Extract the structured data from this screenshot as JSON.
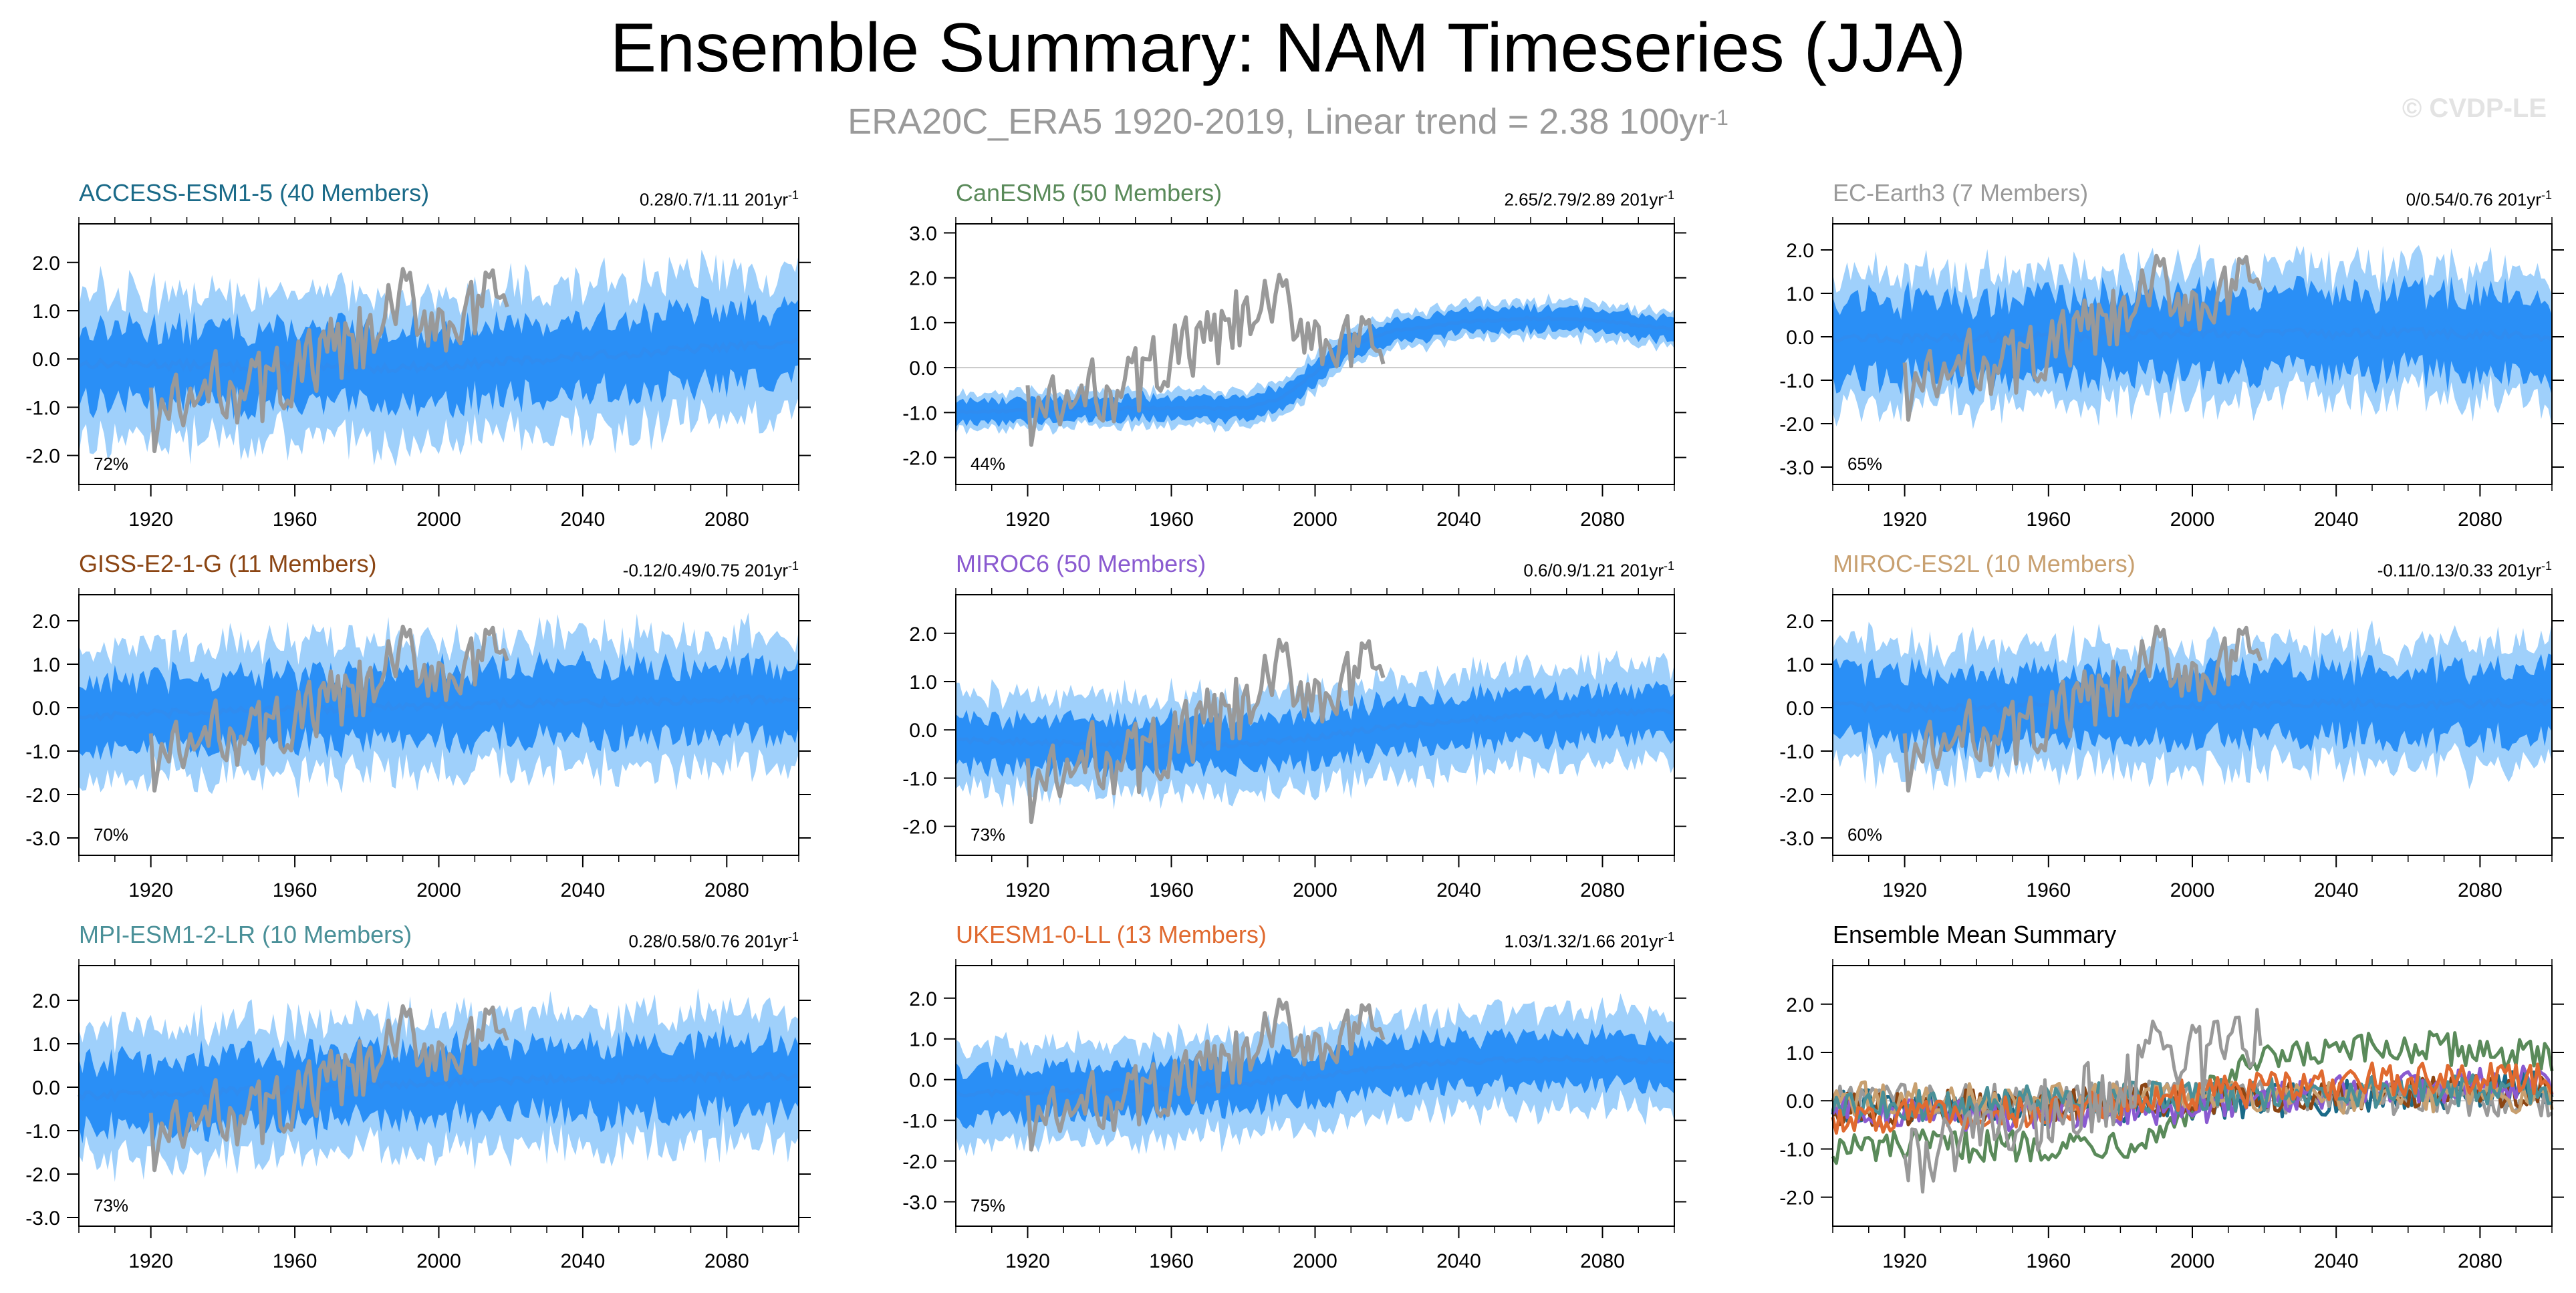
{
  "title": "Ensemble Summary: NAM Timeseries (JJA)",
  "subtitle": {
    "text": "ERA20C_ERA5 1920-2019, Linear trend = 2.38 100yr",
    "exponent": "-1"
  },
  "copyright": "© CVDP-LE",
  "colors": {
    "observations": "#999999",
    "ensemble_mean": "#2f8cf0",
    "band_inner": "#2a8ff6",
    "band_outer": "#9fd0fb",
    "zero_line": "#c8c8c8"
  },
  "chart_data": [
    {
      "type": "area",
      "model": "ACCESS-ESM1-5",
      "title": "ACCESS-ESM1-5 (40 Members)",
      "title_color": "#1a6a88",
      "trend_text": "0.28/0.7/1.11 201yr",
      "trend_exponent": "-1",
      "percent": "72%",
      "ylim": [
        -2.6,
        2.8
      ],
      "yticks": [
        -2,
        -1,
        0,
        1,
        2
      ],
      "ytick_labels": [
        "-2.0",
        "-1.0",
        "0.0",
        "1.0",
        "2.0"
      ],
      "xlim": [
        1900,
        2100
      ],
      "xticks": [
        1920,
        1960,
        2000,
        2040,
        2080
      ],
      "xtick_labels": [
        "1920",
        "1960",
        "2000",
        "2040",
        "2080"
      ],
      "series": [
        {
          "name": "ensemble mean",
          "x": [
            1900,
            1920,
            1940,
            1960,
            1980,
            2000,
            2020,
            2040,
            2060,
            2080,
            2100
          ],
          "values": [
            -0.1,
            -0.1,
            -0.15,
            -0.15,
            -0.2,
            -0.15,
            -0.05,
            0.05,
            0.15,
            0.25,
            0.35
          ]
        },
        {
          "name": "observations",
          "x": [
            1920,
            1930,
            1940,
            1950,
            1960,
            1970,
            1980,
            1990,
            2000,
            2010,
            2019
          ],
          "values": [
            -1.2,
            -1.0,
            -0.5,
            -0.6,
            -0.3,
            0.1,
            0.3,
            1.2,
            0.8,
            0.9,
            1.3
          ]
        }
      ],
      "band_inner_half": 0.75,
      "band_outer_half": 1.5
    },
    {
      "type": "area",
      "model": "CanESM5",
      "title": "CanESM5 (50 Members)",
      "title_color": "#5a8a5a",
      "trend_text": "2.65/2.79/2.89 201yr",
      "trend_exponent": "-1",
      "percent": "44%",
      "ylim": [
        -2.6,
        3.2
      ],
      "yticks": [
        -2,
        -1,
        0,
        1,
        2,
        3
      ],
      "ytick_labels": [
        "-2.0",
        "-1.0",
        "0.0",
        "1.0",
        "2.0",
        "3.0"
      ],
      "xlim": [
        1900,
        2100
      ],
      "xticks": [
        1920,
        1960,
        2000,
        2040,
        2080
      ],
      "xtick_labels": [
        "1920",
        "1960",
        "2000",
        "2040",
        "2080"
      ],
      "series": [
        {
          "name": "ensemble mean",
          "x": [
            1900,
            1920,
            1940,
            1960,
            1980,
            1990,
            2000,
            2010,
            2020,
            2040,
            2060,
            2080,
            2100
          ],
          "values": [
            -1.0,
            -0.95,
            -0.9,
            -0.9,
            -0.9,
            -0.7,
            -0.1,
            0.5,
            0.8,
            1.0,
            1.1,
            1.05,
            0.85
          ]
        },
        {
          "name": "observations",
          "x": [
            1920,
            1930,
            1940,
            1950,
            1960,
            1970,
            1980,
            1990,
            2000,
            2010,
            2019
          ],
          "values": [
            -1.0,
            -0.9,
            -0.5,
            -0.3,
            0.3,
            0.5,
            1.0,
            1.4,
            0.8,
            0.4,
            0.3
          ]
        }
      ],
      "band_inner_half": 0.25,
      "band_outer_half": 0.4
    },
    {
      "type": "area",
      "model": "EC-Earth3",
      "title": "EC-Earth3 (7 Members)",
      "title_color": "#9a9a9a",
      "trend_text": "0/0.54/0.76 201yr",
      "trend_exponent": "-1",
      "percent": "65%",
      "ylim": [
        -3.4,
        2.6
      ],
      "yticks": [
        -3,
        -2,
        -1,
        0,
        1,
        2
      ],
      "ytick_labels": [
        "-3.0",
        "-2.0",
        "-1.0",
        "0.0",
        "1.0",
        "2.0"
      ],
      "xlim": [
        1900,
        2100
      ],
      "xticks": [
        1920,
        1960,
        2000,
        2040,
        2080
      ],
      "xtick_labels": [
        "1920",
        "1960",
        "2000",
        "2040",
        "2080"
      ],
      "series": [
        {
          "name": "ensemble mean",
          "x": [
            1900,
            1920,
            1940,
            1960,
            1980,
            2000,
            2020,
            2040,
            2060,
            2080,
            2100
          ],
          "values": [
            0.0,
            -0.05,
            0.0,
            0.0,
            0.05,
            0.1,
            0.1,
            0.05,
            0.1,
            0.05,
            0.0
          ]
        },
        {
          "name": "observations",
          "x": [
            1920,
            1930,
            1940,
            1950,
            1960,
            1970,
            1980,
            1990,
            2000,
            2010,
            2019
          ],
          "values": [
            -1.2,
            -1.0,
            -0.5,
            -0.6,
            -0.3,
            0.1,
            0.3,
            1.2,
            0.8,
            0.9,
            1.3
          ]
        }
      ],
      "band_inner_half": 0.9,
      "band_outer_half": 1.5
    },
    {
      "type": "area",
      "model": "GISS-E2-1-G",
      "title": "GISS-E2-1-G (11 Members)",
      "title_color": "#8b4513",
      "trend_text": "-0.12/0.49/0.75 201yr",
      "trend_exponent": "-1",
      "percent": "70%",
      "ylim": [
        -3.4,
        2.6
      ],
      "yticks": [
        -3,
        -2,
        -1,
        0,
        1,
        2
      ],
      "ytick_labels": [
        "-3.0",
        "-2.0",
        "-1.0",
        "0.0",
        "1.0",
        "2.0"
      ],
      "xlim": [
        1900,
        2100
      ],
      "xticks": [
        1920,
        1960,
        2000,
        2040,
        2080
      ],
      "xtick_labels": [
        "1920",
        "1960",
        "2000",
        "2040",
        "2080"
      ],
      "series": [
        {
          "name": "ensemble mean",
          "x": [
            1900,
            1920,
            1940,
            1960,
            1980,
            2000,
            2020,
            2040,
            2060,
            2080,
            2100
          ],
          "values": [
            -0.2,
            -0.15,
            -0.1,
            -0.05,
            0.0,
            0.05,
            0.1,
            0.1,
            0.15,
            0.2,
            0.2
          ]
        },
        {
          "name": "observations",
          "x": [
            1920,
            1930,
            1940,
            1950,
            1960,
            1970,
            1980,
            1990,
            2000,
            2010,
            2019
          ],
          "values": [
            -1.2,
            -1.0,
            -0.5,
            -0.6,
            -0.3,
            0.1,
            0.3,
            1.2,
            0.8,
            0.9,
            1.3
          ]
        }
      ],
      "band_inner_half": 0.8,
      "band_outer_half": 1.5
    },
    {
      "type": "area",
      "model": "MIROC6",
      "title": "MIROC6 (50 Members)",
      "title_color": "#8a5ad0",
      "trend_text": "0.6/0.9/1.21 201yr",
      "trend_exponent": "-1",
      "percent": "73%",
      "ylim": [
        -2.6,
        2.8
      ],
      "yticks": [
        -2,
        -1,
        0,
        1,
        2
      ],
      "ytick_labels": [
        "-2.0",
        "-1.0",
        "0.0",
        "1.0",
        "2.0"
      ],
      "xlim": [
        1900,
        2100
      ],
      "xticks": [
        1920,
        1960,
        2000,
        2040,
        2080
      ],
      "xtick_labels": [
        "1920",
        "1960",
        "2000",
        "2040",
        "2080"
      ],
      "series": [
        {
          "name": "ensemble mean",
          "x": [
            1900,
            1920,
            1940,
            1960,
            1980,
            2000,
            2020,
            2040,
            2060,
            2080,
            2100
          ],
          "values": [
            -0.2,
            -0.25,
            -0.3,
            -0.3,
            -0.3,
            -0.15,
            0.05,
            0.2,
            0.3,
            0.35,
            0.4
          ]
        },
        {
          "name": "observations",
          "x": [
            1920,
            1930,
            1940,
            1950,
            1960,
            1970,
            1980,
            1990,
            2000,
            2010,
            2019
          ],
          "values": [
            -1.2,
            -1.0,
            -0.5,
            -0.6,
            -0.3,
            0.1,
            0.3,
            1.2,
            0.8,
            0.9,
            1.3
          ]
        }
      ],
      "band_inner_half": 0.5,
      "band_outer_half": 1.0
    },
    {
      "type": "area",
      "model": "MIROC-ES2L",
      "title": "MIROC-ES2L (10 Members)",
      "title_color": "#c8a070",
      "trend_text": "-0.11/0.13/0.33 201yr",
      "trend_exponent": "-1",
      "percent": "60%",
      "ylim": [
        -3.4,
        2.6
      ],
      "yticks": [
        -3,
        -2,
        -1,
        0,
        1,
        2
      ],
      "ytick_labels": [
        "-3.0",
        "-2.0",
        "-1.0",
        "0.0",
        "1.0",
        "2.0"
      ],
      "xlim": [
        1900,
        2100
      ],
      "xticks": [
        1920,
        1960,
        2000,
        2040,
        2080
      ],
      "xtick_labels": [
        "1920",
        "1960",
        "2000",
        "2040",
        "2080"
      ],
      "series": [
        {
          "name": "ensemble mean",
          "x": [
            1900,
            1920,
            1940,
            1960,
            1980,
            2000,
            2020,
            2040,
            2060,
            2080,
            2100
          ],
          "values": [
            0.05,
            0.0,
            0.0,
            0.05,
            0.05,
            0.05,
            0.05,
            0.1,
            0.05,
            0.1,
            0.1
          ]
        },
        {
          "name": "observations",
          "x": [
            1920,
            1930,
            1940,
            1950,
            1960,
            1970,
            1980,
            1990,
            2000,
            2010,
            2019
          ],
          "values": [
            -1.2,
            -1.0,
            -0.5,
            -0.6,
            -0.3,
            0.1,
            0.3,
            1.2,
            0.8,
            0.9,
            1.3
          ]
        }
      ],
      "band_inner_half": 0.8,
      "band_outer_half": 1.4
    },
    {
      "type": "area",
      "model": "MPI-ESM1-2-LR",
      "title": "MPI-ESM1-2-LR (10 Members)",
      "title_color": "#4a9098",
      "trend_text": "0.28/0.58/0.76 201yr",
      "trend_exponent": "-1",
      "percent": "73%",
      "ylim": [
        -3.2,
        2.8
      ],
      "yticks": [
        -3,
        -2,
        -1,
        0,
        1,
        2
      ],
      "ytick_labels": [
        "-3.0",
        "-2.0",
        "-1.0",
        "0.0",
        "1.0",
        "2.0"
      ],
      "xlim": [
        1900,
        2100
      ],
      "xticks": [
        1920,
        1960,
        2000,
        2040,
        2080
      ],
      "xtick_labels": [
        "1920",
        "1960",
        "2000",
        "2040",
        "2080"
      ],
      "series": [
        {
          "name": "ensemble mean",
          "x": [
            1900,
            1920,
            1940,
            1960,
            1980,
            2000,
            2020,
            2040,
            2060,
            2080,
            2100
          ],
          "values": [
            -0.2,
            -0.15,
            -0.1,
            -0.05,
            0.05,
            0.1,
            0.15,
            0.2,
            0.2,
            0.25,
            0.25
          ]
        },
        {
          "name": "observations",
          "x": [
            1920,
            1930,
            1940,
            1950,
            1960,
            1970,
            1980,
            1990,
            2000,
            2010,
            2019
          ],
          "values": [
            -1.2,
            -1.0,
            -0.5,
            -0.6,
            -0.3,
            0.1,
            0.3,
            1.2,
            0.8,
            0.9,
            1.3
          ]
        }
      ],
      "band_inner_half": 0.8,
      "band_outer_half": 1.5
    },
    {
      "type": "area",
      "model": "UKESM1-0-LL",
      "title": "UKESM1-0-LL (13 Members)",
      "title_color": "#e06a30",
      "trend_text": "1.03/1.32/1.66 201yr",
      "trend_exponent": "-1",
      "percent": "75%",
      "ylim": [
        -3.6,
        2.8
      ],
      "yticks": [
        -3,
        -2,
        -1,
        0,
        1,
        2
      ],
      "ytick_labels": [
        "-3.0",
        "-2.0",
        "-1.0",
        "0.0",
        "1.0",
        "2.0"
      ],
      "xlim": [
        1900,
        2100
      ],
      "xticks": [
        1920,
        1960,
        2000,
        2040,
        2080
      ],
      "xtick_labels": [
        "1920",
        "1960",
        "2000",
        "2040",
        "2080"
      ],
      "series": [
        {
          "name": "ensemble mean",
          "x": [
            1900,
            1920,
            1940,
            1960,
            1980,
            2000,
            2020,
            2040,
            2060,
            2080,
            2100
          ],
          "values": [
            -0.35,
            -0.3,
            -0.3,
            -0.2,
            -0.1,
            0.1,
            0.3,
            0.45,
            0.5,
            0.5,
            0.45
          ]
        },
        {
          "name": "observations",
          "x": [
            1920,
            1930,
            1940,
            1950,
            1960,
            1970,
            1980,
            1990,
            2000,
            2010,
            2019
          ],
          "values": [
            -1.0,
            -0.9,
            -0.5,
            -0.4,
            -0.2,
            0.2,
            0.4,
            1.3,
            0.9,
            1.0,
            1.2
          ]
        }
      ],
      "band_inner_half": 0.6,
      "band_outer_half": 1.2
    },
    {
      "type": "line",
      "model": "Ensemble Mean Summary",
      "title": "Ensemble Mean Summary",
      "title_color": "#000000",
      "trend_text": "",
      "trend_exponent": "",
      "percent": "",
      "ylim": [
        -2.6,
        2.8
      ],
      "yticks": [
        -2,
        -1,
        0,
        1,
        2
      ],
      "ytick_labels": [
        "-2.0",
        "-1.0",
        "0.0",
        "1.0",
        "2.0"
      ],
      "xlim": [
        1900,
        2100
      ],
      "xticks": [
        1920,
        1960,
        2000,
        2040,
        2080
      ],
      "xtick_labels": [
        "1920",
        "1960",
        "2000",
        "2040",
        "2080"
      ],
      "series": [
        {
          "name": "ACCESS-ESM1-5",
          "color": "#1a6a88",
          "x": [
            1900,
            1950,
            2000,
            2050,
            2100
          ],
          "values": [
            -0.1,
            -0.15,
            -0.1,
            0.1,
            0.3
          ]
        },
        {
          "name": "CanESM5",
          "color": "#5a8a5a",
          "x": [
            1900,
            1920,
            1960,
            1980,
            1990,
            2000,
            2010,
            2020,
            2040,
            2060,
            2080,
            2100
          ],
          "values": [
            -1.0,
            -0.95,
            -0.9,
            -0.85,
            -0.7,
            -0.1,
            0.5,
            0.8,
            1.0,
            1.1,
            1.05,
            0.85
          ]
        },
        {
          "name": "EC-Earth3",
          "color": "#9a9a9a",
          "x": [
            1900,
            1950,
            2000,
            2050,
            2100
          ],
          "values": [
            0.0,
            0.0,
            0.1,
            0.05,
            0.0
          ]
        },
        {
          "name": "GISS-E2-1-G",
          "color": "#8b4513",
          "x": [
            1900,
            1950,
            2000,
            2050,
            2100
          ],
          "values": [
            -0.2,
            -0.1,
            0.05,
            0.15,
            0.2
          ]
        },
        {
          "name": "MIROC6",
          "color": "#8a5ad0",
          "x": [
            1900,
            1950,
            2000,
            2050,
            2100
          ],
          "values": [
            -0.2,
            -0.3,
            -0.15,
            0.25,
            0.4
          ]
        },
        {
          "name": "MIROC-ES2L",
          "color": "#c8a070",
          "x": [
            1900,
            1950,
            2000,
            2050,
            2100
          ],
          "values": [
            0.05,
            0.0,
            0.05,
            0.1,
            0.1
          ]
        },
        {
          "name": "MPI-ESM1-2-LR",
          "color": "#4a9098",
          "x": [
            1900,
            1950,
            2000,
            2050,
            2100
          ],
          "values": [
            -0.2,
            -0.05,
            0.1,
            0.2,
            0.25
          ]
        },
        {
          "name": "UKESM1-0-LL",
          "color": "#e06a30",
          "x": [
            1900,
            1950,
            2000,
            2050,
            2100
          ],
          "values": [
            -0.35,
            -0.25,
            0.1,
            0.45,
            0.45
          ]
        },
        {
          "name": "observations",
          "color": "#999999",
          "x": [
            1920,
            1930,
            1940,
            1950,
            1960,
            1970,
            1980,
            1990,
            2000,
            2010,
            2019
          ],
          "values": [
            -1.2,
            -1.0,
            -0.5,
            -0.6,
            -0.3,
            0.1,
            0.3,
            1.2,
            0.8,
            0.9,
            1.3
          ]
        }
      ]
    }
  ]
}
